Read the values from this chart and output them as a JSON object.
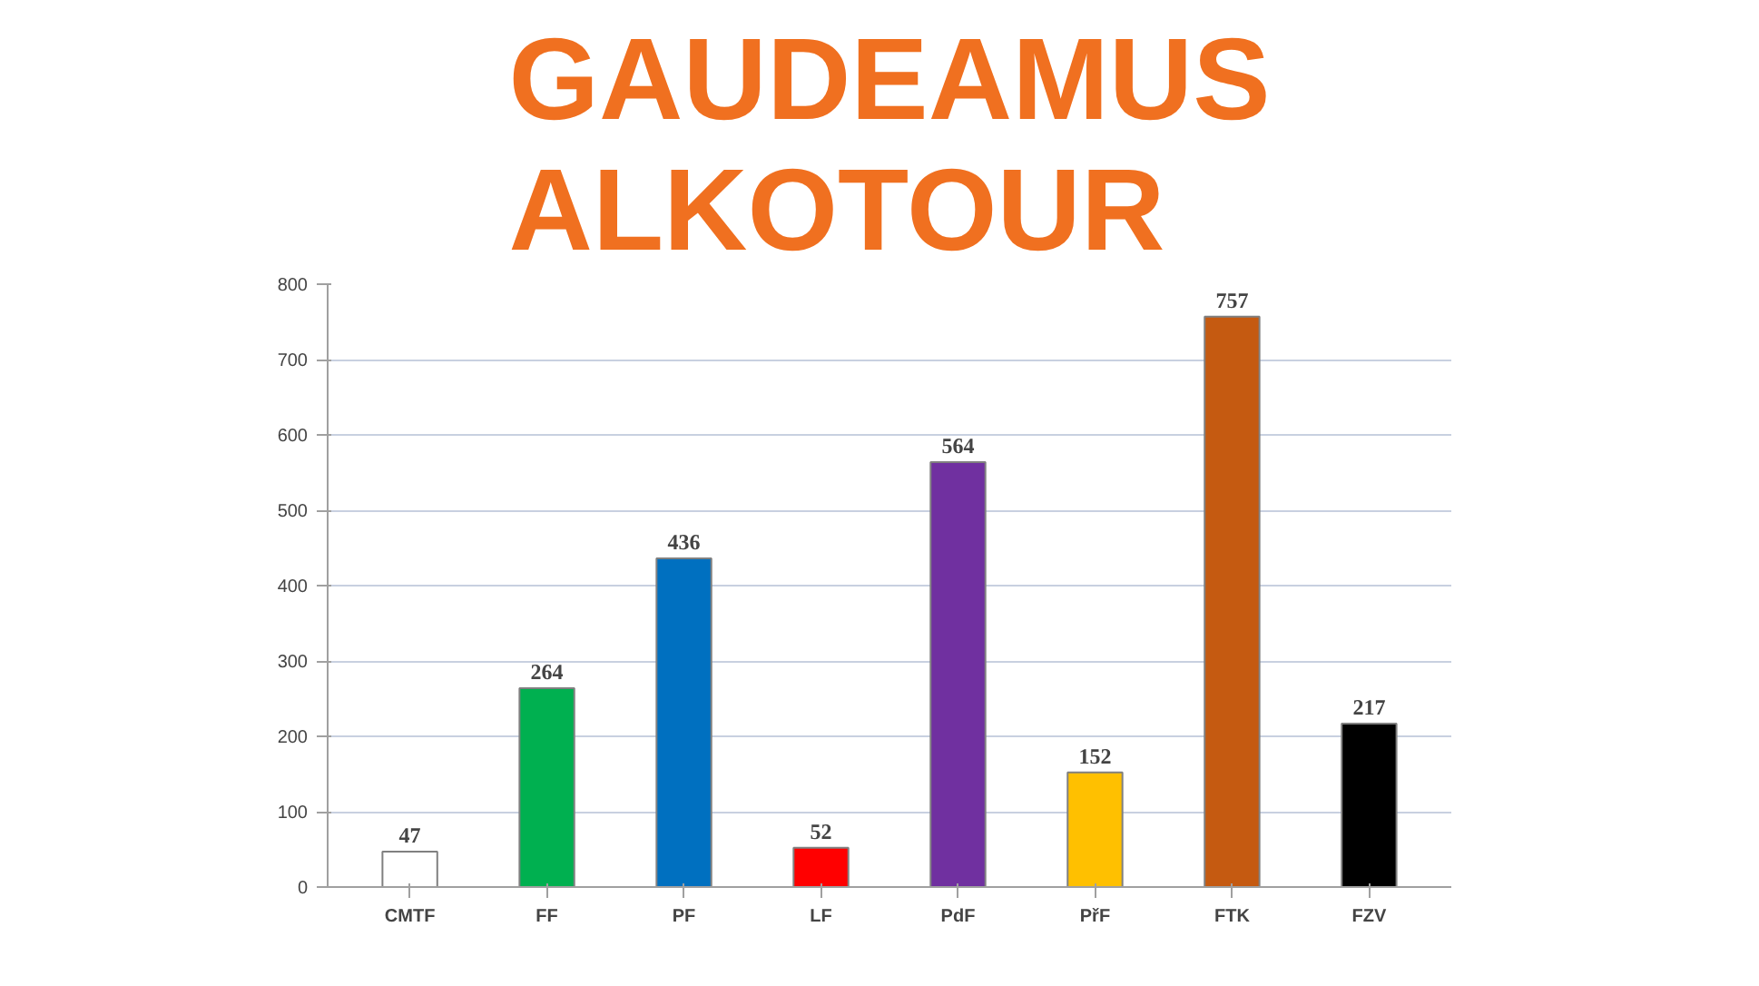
{
  "chart_data": {
    "type": "bar",
    "title": "GAUDEAMUS ALKOTOUR",
    "categories": [
      "CMTF",
      "FF",
      "PF",
      "LF",
      "PdF",
      "PřF",
      "FTK",
      "FZV"
    ],
    "values": [
      47,
      264,
      436,
      52,
      564,
      152,
      757,
      217
    ],
    "colors": [
      "#ffffff",
      "#00b050",
      "#0070c0",
      "#ff0000",
      "#7030a0",
      "#ffc000",
      "#c55a11",
      "#000000"
    ],
    "ylim": [
      0,
      800
    ],
    "yticks": [
      0,
      100,
      200,
      300,
      400,
      500,
      600,
      700,
      800
    ],
    "grid": "y",
    "data_labels": true
  }
}
